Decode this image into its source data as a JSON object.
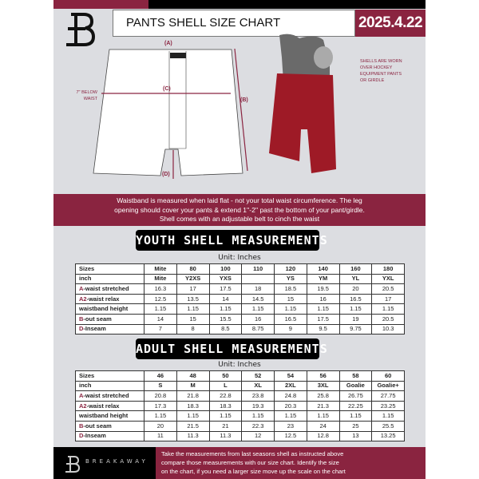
{
  "header": {
    "title": "PANTS SHELL SIZE CHART",
    "date": "2025.4.22"
  },
  "diagram": {
    "label_a": "(A)",
    "label_b": "(B)",
    "label_c": "(C)",
    "label_d": "(D)",
    "below_waist": [
      "7'' BELOW",
      "WAIST"
    ],
    "note": [
      "SHELLS ARE WORN",
      "OVER HOCKEY",
      "EQUIPMENT PANTS",
      "OR GIRDLE"
    ]
  },
  "band": [
    "Waistband is measured when laid flat - not your total waist circumference. The leg",
    "opening should cover your pants & extend 1''-2'' past the bottom of your pant/girdle.",
    "Shell comes with an adjustable belt to cinch the waist"
  ],
  "youth": {
    "title": "YOUTH SHELL MEASUREMENTS",
    "unit": "Unit: Inches",
    "rows": [
      {
        "label": "Sizes",
        "values": [
          "Mite",
          "80",
          "100",
          "110",
          "120",
          "140",
          "160",
          "180"
        ]
      },
      {
        "label": "inch",
        "values": [
          "Mite",
          "Y2XS",
          "YXS",
          "",
          "YS",
          "YM",
          "YL",
          "YXL"
        ]
      },
      {
        "key": "A",
        "label": "-waist stretched",
        "values": [
          "16.3",
          "17",
          "17.5",
          "18",
          "18.5",
          "19.5",
          "20",
          "20.5"
        ]
      },
      {
        "key": "A2",
        "label": "-waist relax",
        "values": [
          "12.5",
          "13.5",
          "14",
          "14.5",
          "15",
          "16",
          "16.5",
          "17"
        ]
      },
      {
        "label": "waistband height",
        "values": [
          "1.15",
          "1.15",
          "1.15",
          "1.15",
          "1.15",
          "1.15",
          "1.15",
          "1.15"
        ]
      },
      {
        "key": "B",
        "label": "-out seam",
        "values": [
          "14",
          "15",
          "15.5",
          "16",
          "16.5",
          "17.5",
          "19",
          "20.5"
        ]
      },
      {
        "key": "D",
        "label": "-Inseam",
        "values": [
          "7",
          "8",
          "8.5",
          "8.75",
          "9",
          "9.5",
          "9.75",
          "10.3"
        ]
      }
    ]
  },
  "adult": {
    "title": "ADULT SHELL MEASUREMENTS",
    "unit": "Unit: Inches",
    "rows": [
      {
        "label": "Sizes",
        "values": [
          "46",
          "48",
          "50",
          "52",
          "54",
          "56",
          "58",
          "60"
        ]
      },
      {
        "label": "inch",
        "values": [
          "S",
          "M",
          "L",
          "XL",
          "2XL",
          "3XL",
          "Goalie",
          "Goalie+"
        ]
      },
      {
        "key": "A",
        "label": "-waist stretched",
        "values": [
          "20.8",
          "21.8",
          "22.8",
          "23.8",
          "24.8",
          "25.8",
          "26.75",
          "27.75"
        ]
      },
      {
        "key": "A2",
        "label": "-waist relax",
        "values": [
          "17.3",
          "18.3",
          "18.3",
          "19.3",
          "20.3",
          "21.3",
          "22.25",
          "23.25"
        ]
      },
      {
        "label": "waistband height",
        "values": [
          "1.15",
          "1.15",
          "1.15",
          "1.15",
          "1.15",
          "1.15",
          "1.15",
          "1.15"
        ]
      },
      {
        "key": "B",
        "label": "-out seam",
        "values": [
          "20",
          "21.5",
          "21",
          "22.3",
          "23",
          "24",
          "25",
          "25.5"
        ]
      },
      {
        "key": "D",
        "label": "-Inseam",
        "values": [
          "11",
          "11.3",
          "11.3",
          "12",
          "12.5",
          "12.8",
          "13",
          "13.25"
        ]
      }
    ]
  },
  "footer": {
    "brand": "BREAKAWAY",
    "text": [
      "Take the measurements from last seasons shell as instructed above",
      "compare those measurements  with our size chart. Identify the size",
      "on the chart, if you need a larger size move up the scale on the chart"
    ]
  },
  "colors": {
    "maroon": "#8a2440",
    "background": "#dcdde1"
  }
}
